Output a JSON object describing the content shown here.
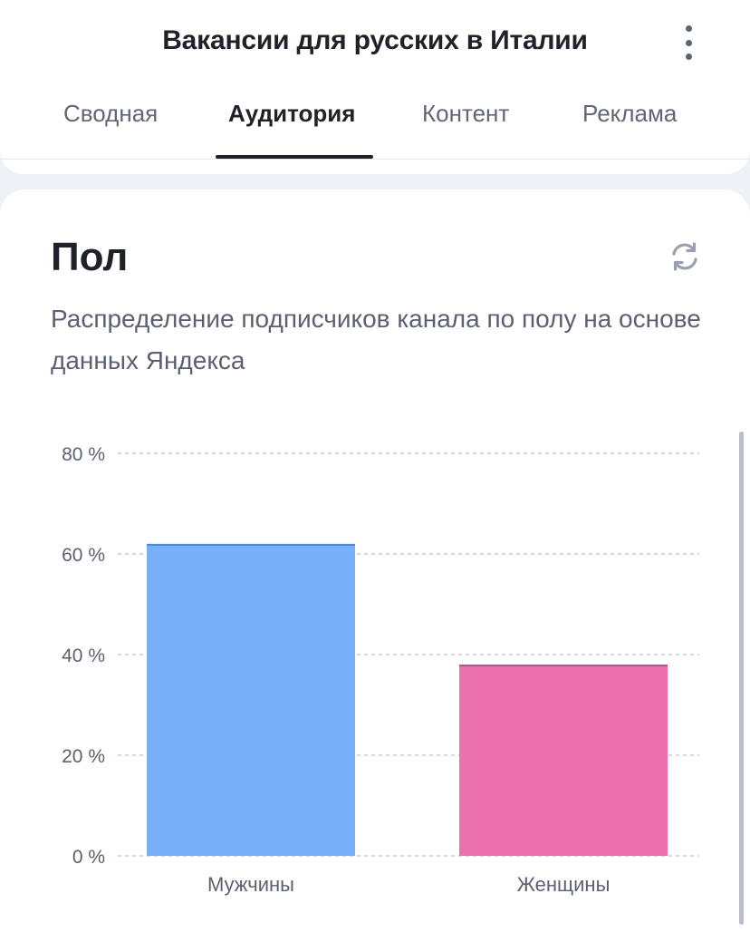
{
  "header": {
    "title": "Вакансии для русских в Италии",
    "menu_icon": "more-vertical-icon"
  },
  "tabs": [
    {
      "label": "Сводная",
      "active": false
    },
    {
      "label": "Аудитория",
      "active": true
    },
    {
      "label": "Контент",
      "active": false
    },
    {
      "label": "Реклама",
      "active": false
    }
  ],
  "card": {
    "title": "Пол",
    "subtitle": "Распределение подписчиков канала по полу на основе данных Яндекса",
    "refresh_icon": "refresh-icon"
  },
  "colors": {
    "male": "#78b0f7",
    "male_edge": "#4f86d8",
    "female": "#ee71af",
    "female_edge": "#c9468a",
    "grid": "#c7cbd3"
  },
  "chart_data": {
    "type": "bar",
    "categories": [
      "Мужчины",
      "Женщины"
    ],
    "values": [
      62,
      38
    ],
    "y_ticks": [
      "0 %",
      "20 %",
      "40 %",
      "60 %",
      "80 %"
    ],
    "ylim": [
      0,
      80
    ],
    "grid": true
  }
}
